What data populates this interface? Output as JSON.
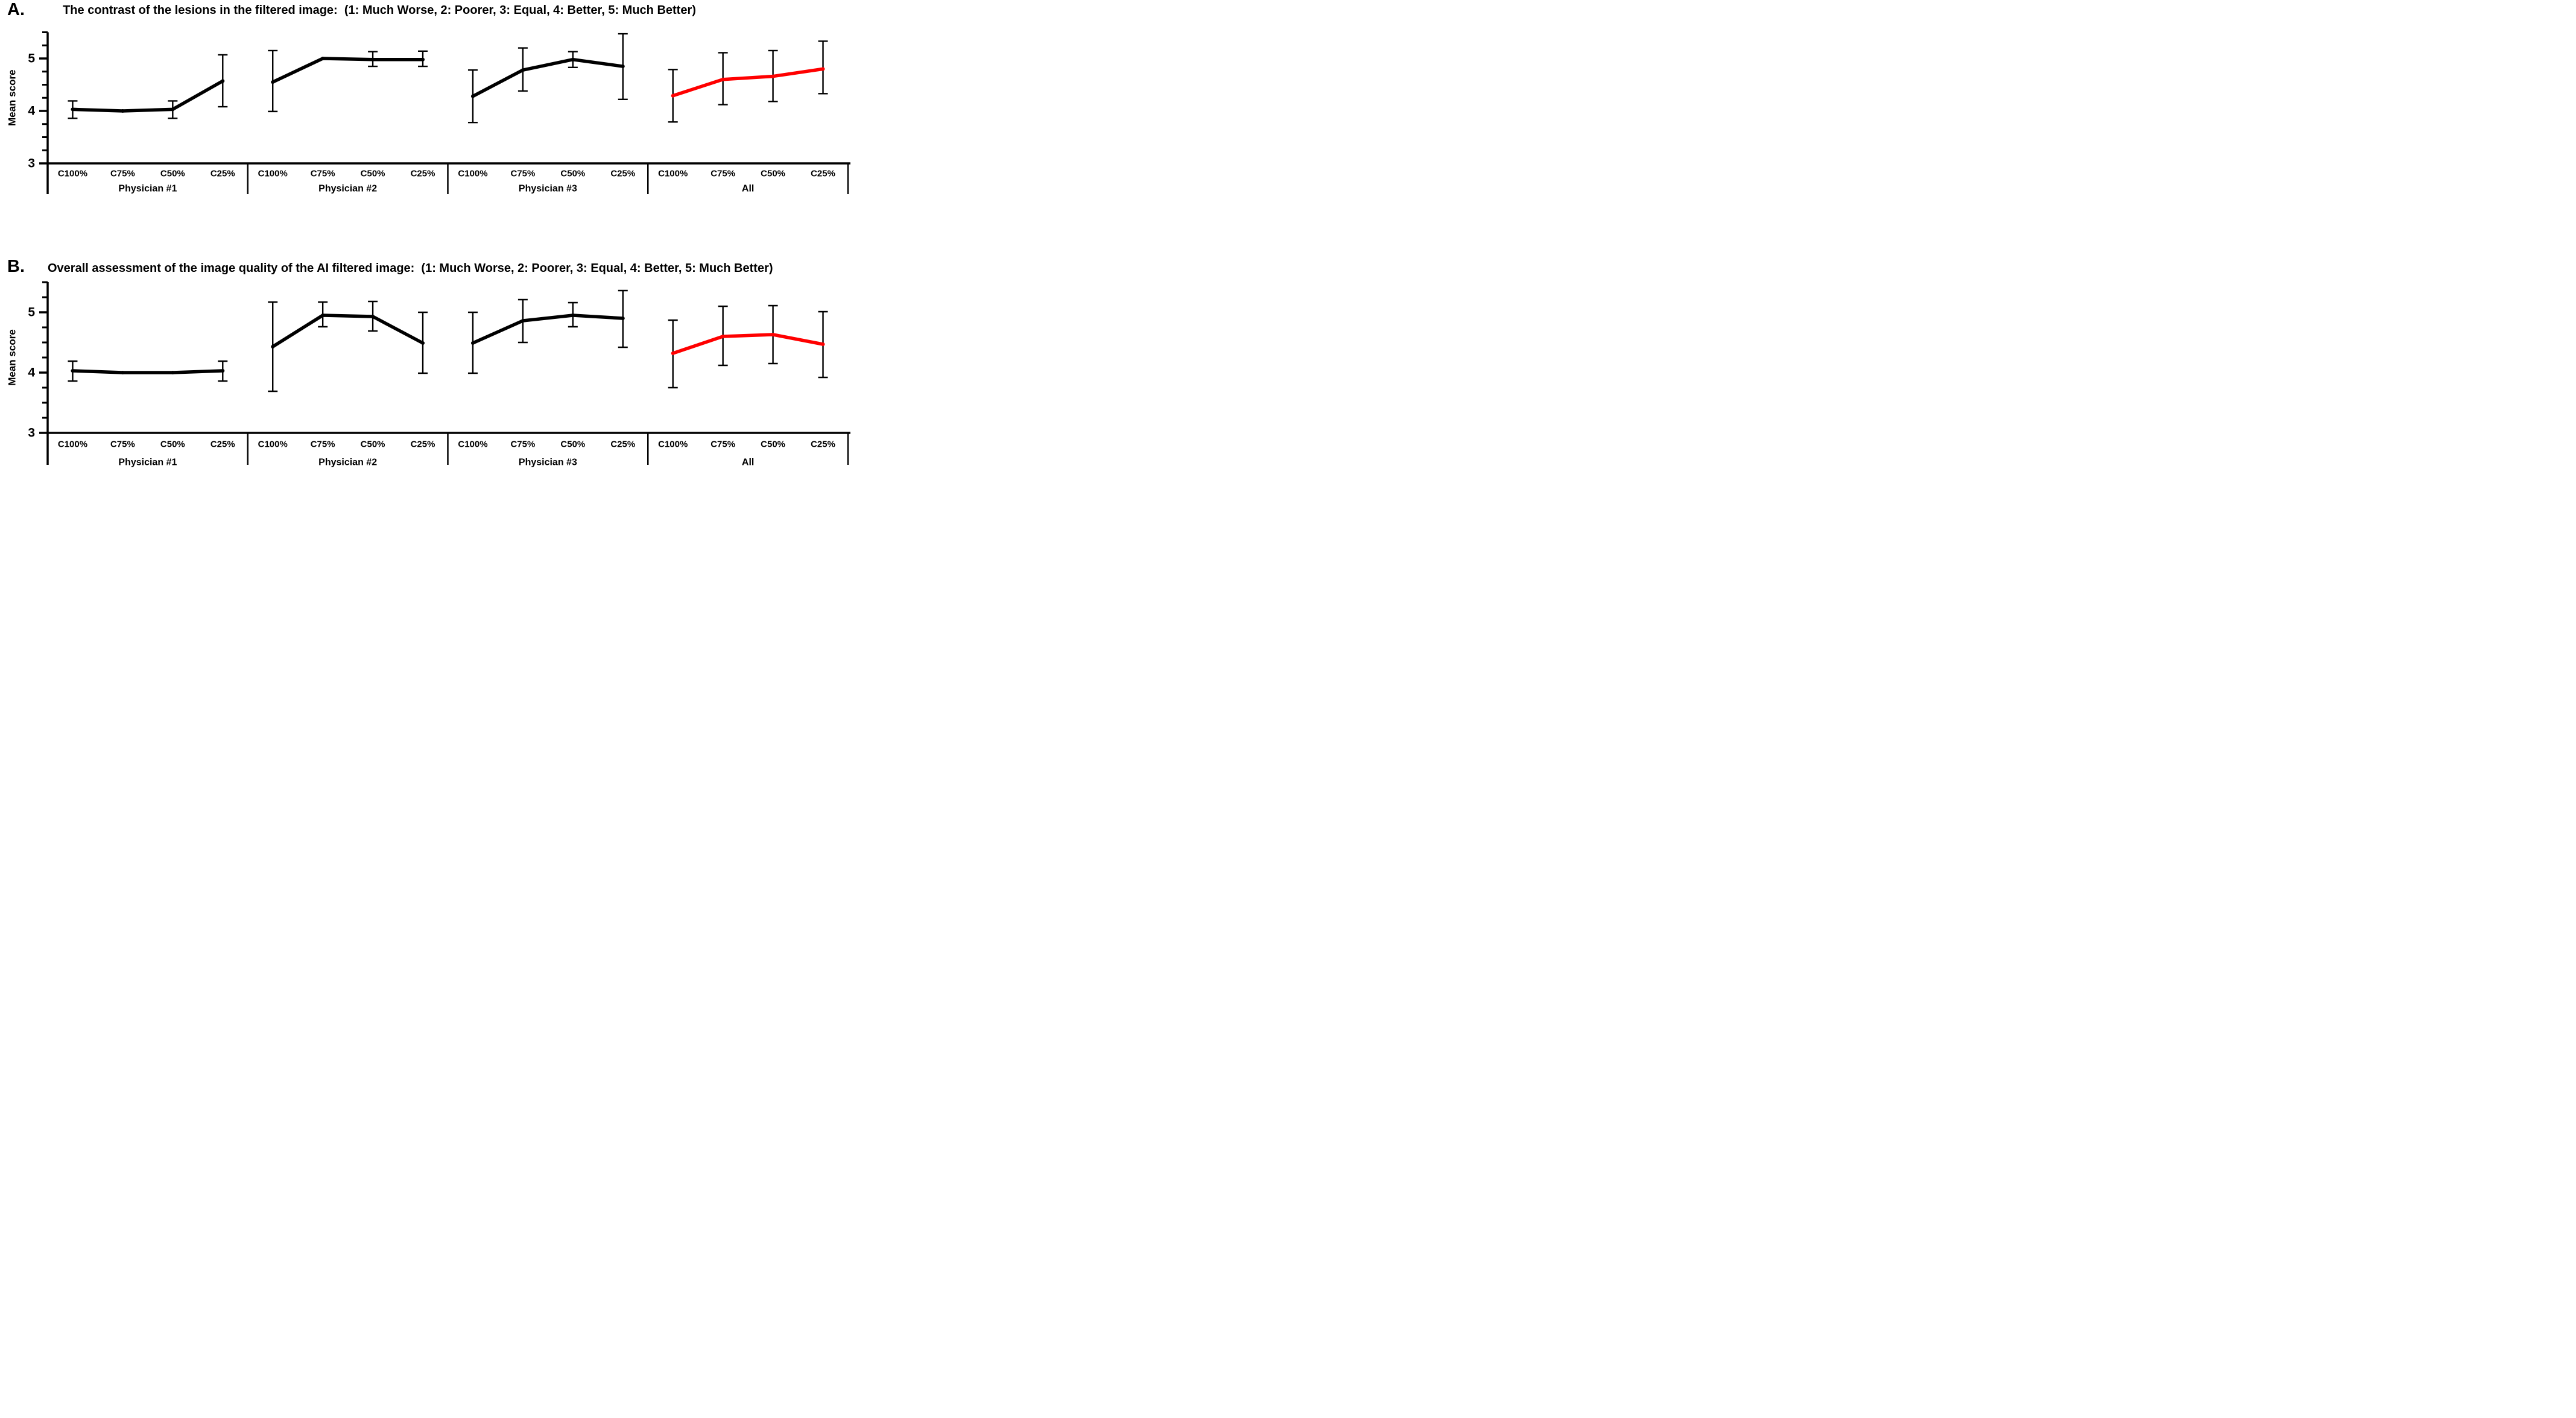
{
  "figure": {
    "background": "#ffffff",
    "error_bar_color": "#000000",
    "highlight_color": "#ff0000"
  },
  "chart_data": [
    {
      "panel_label": "A.",
      "type": "line",
      "title": "The contrast of the lesions in the filtered image:  (1: Much Worse, 2: Poorer, 3: Equal, 4: Better, 5: Much Better)",
      "ylabel": "Mean score",
      "ylim": [
        3,
        5.5
      ],
      "yticks": [
        3,
        4,
        5
      ],
      "minor_tick_step": 0.25,
      "grid": false,
      "legend": false,
      "categories": [
        "C100%",
        "C75%",
        "C50%",
        "C25%"
      ],
      "series": [
        {
          "name": "Physician #1",
          "color": "#000000",
          "means": [
            4.03,
            4.0,
            4.03,
            4.57
          ],
          "ci_low": [
            3.86,
            null,
            3.86,
            4.08
          ],
          "ci_high": [
            4.19,
            null,
            4.19,
            5.07
          ]
        },
        {
          "name": "Physician #2",
          "color": "#000000",
          "means": [
            4.55,
            5.0,
            4.98,
            4.98
          ],
          "ci_low": [
            3.99,
            null,
            4.85,
            4.85
          ],
          "ci_high": [
            5.15,
            null,
            5.13,
            5.14
          ]
        },
        {
          "name": "Physician #3",
          "color": "#000000",
          "means": [
            4.28,
            4.78,
            4.98,
            4.85
          ],
          "ci_low": [
            3.78,
            4.38,
            4.83,
            4.22
          ],
          "ci_high": [
            4.78,
            5.2,
            5.13,
            5.47
          ]
        },
        {
          "name": "All",
          "color": "#ff0000",
          "means": [
            4.29,
            4.6,
            4.66,
            4.8
          ],
          "ci_low": [
            3.79,
            4.12,
            4.18,
            4.33
          ],
          "ci_high": [
            4.79,
            5.11,
            5.15,
            5.33
          ]
        }
      ]
    },
    {
      "panel_label": "B.",
      "type": "line",
      "title": "Overall assessment of the image quality of the AI filtered image:  (1: Much Worse, 2: Poorer, 3: Equal, 4: Better, 5: Much Better)",
      "ylabel": "Mean score",
      "ylim": [
        3,
        5.5
      ],
      "yticks": [
        3,
        4,
        5
      ],
      "minor_tick_step": 0.25,
      "grid": false,
      "legend": false,
      "categories": [
        "C100%",
        "C75%",
        "C50%",
        "C25%"
      ],
      "series": [
        {
          "name": "Physician #1",
          "color": "#000000",
          "means": [
            4.03,
            4.0,
            4.0,
            4.03
          ],
          "ci_low": [
            3.86,
            null,
            null,
            3.86
          ],
          "ci_high": [
            4.19,
            null,
            null,
            4.19
          ]
        },
        {
          "name": "Physician #2",
          "color": "#000000",
          "means": [
            4.43,
            4.95,
            4.93,
            4.49
          ],
          "ci_low": [
            3.69,
            4.76,
            4.69,
            3.99
          ],
          "ci_high": [
            5.17,
            5.17,
            5.18,
            5.0
          ]
        },
        {
          "name": "Physician #3",
          "color": "#000000",
          "means": [
            4.49,
            4.86,
            4.95,
            4.9
          ],
          "ci_low": [
            3.99,
            4.5,
            4.76,
            4.42
          ],
          "ci_high": [
            5.0,
            5.21,
            5.16,
            5.36
          ]
        },
        {
          "name": "All",
          "color": "#ff0000",
          "means": [
            4.32,
            4.6,
            4.63,
            4.47
          ],
          "ci_low": [
            3.75,
            4.12,
            4.15,
            3.92
          ],
          "ci_high": [
            4.87,
            5.1,
            5.11,
            5.01
          ]
        }
      ]
    }
  ]
}
